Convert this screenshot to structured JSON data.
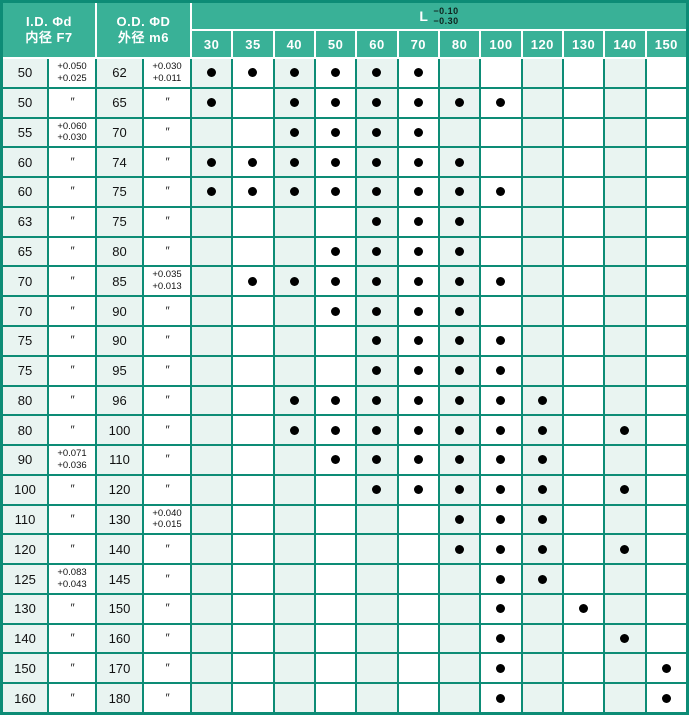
{
  "table": {
    "ditto_mark": "″",
    "colors": {
      "header_green": "#39b197",
      "border_teal": "#0d8c76",
      "tint_cell": "#e9f4f1",
      "dot": "#000000"
    },
    "header": {
      "id_line1": "I.D. Φd",
      "id_line2": "内径 F7",
      "od_line1": "O.D. ΦD",
      "od_line2": "外径 m6",
      "l_label": "L",
      "l_tol_upper": "−0.10",
      "l_tol_lower": "−0.30",
      "lengths": [
        "30",
        "35",
        "40",
        "50",
        "60",
        "70",
        "80",
        "100",
        "120",
        "130",
        "140",
        "150"
      ]
    },
    "rows": [
      {
        "id": "50",
        "id_tol": [
          "+0.050",
          "+0.025"
        ],
        "od": "62",
        "od_tol": [
          "+0.030",
          "+0.011"
        ],
        "dots": [
          30,
          35,
          40,
          50,
          60,
          70
        ]
      },
      {
        "id": "50",
        "id_tol": "″",
        "od": "65",
        "od_tol": "″",
        "dots": [
          30,
          40,
          50,
          60,
          70,
          80,
          100
        ]
      },
      {
        "id": "55",
        "id_tol": [
          "+0.060",
          "+0.030"
        ],
        "od": "70",
        "od_tol": "″",
        "dots": [
          40,
          50,
          60,
          70
        ]
      },
      {
        "id": "60",
        "id_tol": "″",
        "od": "74",
        "od_tol": "″",
        "dots": [
          30,
          35,
          40,
          50,
          60,
          70,
          80
        ]
      },
      {
        "id": "60",
        "id_tol": "″",
        "od": "75",
        "od_tol": "″",
        "dots": [
          30,
          35,
          40,
          50,
          60,
          70,
          80,
          100
        ]
      },
      {
        "id": "63",
        "id_tol": "″",
        "od": "75",
        "od_tol": "″",
        "dots": [
          60,
          70,
          80
        ]
      },
      {
        "id": "65",
        "id_tol": "″",
        "od": "80",
        "od_tol": "″",
        "dots": [
          50,
          60,
          70,
          80
        ]
      },
      {
        "id": "70",
        "id_tol": "″",
        "od": "85",
        "od_tol": [
          "+0.035",
          "+0.013"
        ],
        "dots": [
          35,
          40,
          50,
          60,
          70,
          80,
          100
        ]
      },
      {
        "id": "70",
        "id_tol": "″",
        "od": "90",
        "od_tol": "″",
        "dots": [
          50,
          60,
          70,
          80
        ]
      },
      {
        "id": "75",
        "id_tol": "″",
        "od": "90",
        "od_tol": "″",
        "dots": [
          60,
          70,
          80,
          100
        ]
      },
      {
        "id": "75",
        "id_tol": "″",
        "od": "95",
        "od_tol": "″",
        "dots": [
          60,
          70,
          80,
          100
        ]
      },
      {
        "id": "80",
        "id_tol": "″",
        "od": "96",
        "od_tol": "″",
        "dots": [
          40,
          50,
          60,
          70,
          80,
          100,
          120
        ]
      },
      {
        "id": "80",
        "id_tol": "″",
        "od": "100",
        "od_tol": "″",
        "dots": [
          40,
          50,
          60,
          70,
          80,
          100,
          120,
          140
        ]
      },
      {
        "id": "90",
        "id_tol": [
          "+0.071",
          "+0.036"
        ],
        "od": "110",
        "od_tol": "″",
        "dots": [
          50,
          60,
          70,
          80,
          100,
          120
        ]
      },
      {
        "id": "100",
        "id_tol": "″",
        "od": "120",
        "od_tol": "″",
        "dots": [
          60,
          70,
          80,
          100,
          120,
          140
        ]
      },
      {
        "id": "110",
        "id_tol": "″",
        "od": "130",
        "od_tol": [
          "+0.040",
          "+0.015"
        ],
        "dots": [
          80,
          100,
          120
        ]
      },
      {
        "id": "120",
        "id_tol": "″",
        "od": "140",
        "od_tol": "″",
        "dots": [
          80,
          100,
          120,
          140
        ]
      },
      {
        "id": "125",
        "id_tol": [
          "+0.083",
          "+0.043"
        ],
        "od": "145",
        "od_tol": "″",
        "dots": [
          100,
          120
        ]
      },
      {
        "id": "130",
        "id_tol": "″",
        "od": "150",
        "od_tol": "″",
        "dots": [
          100,
          130
        ]
      },
      {
        "id": "140",
        "id_tol": "″",
        "od": "160",
        "od_tol": "″",
        "dots": [
          100,
          140
        ]
      },
      {
        "id": "150",
        "id_tol": "″",
        "od": "170",
        "od_tol": "″",
        "dots": [
          100,
          150
        ]
      },
      {
        "id": "160",
        "id_tol": "″",
        "od": "180",
        "od_tol": "″",
        "dots": [
          100,
          150
        ]
      }
    ]
  }
}
